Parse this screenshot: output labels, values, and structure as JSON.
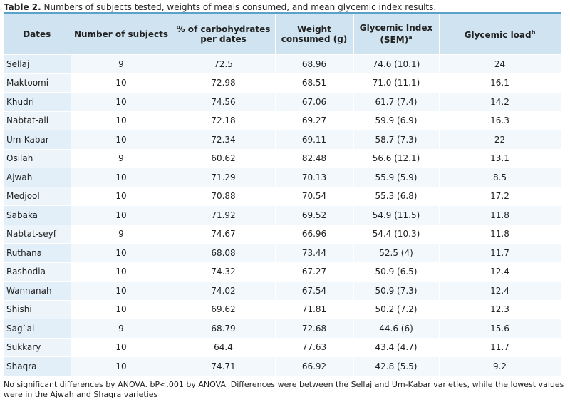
{
  "caption": {
    "label": "Table 2.",
    "text": "Numbers of subjects tested, weights of meals consumed, and mean glycemic index results."
  },
  "table": {
    "headers": [
      {
        "text": "Dates"
      },
      {
        "text": "Number of subjects"
      },
      {
        "text": "% of carbohydrates per dates"
      },
      {
        "text": "Weight consumed (g)"
      },
      {
        "text": "Glycemic Index (SEM)",
        "sup": "a"
      },
      {
        "text": "Glycemic load",
        "sup": "b"
      }
    ],
    "rows": [
      [
        "Sellaj",
        "9",
        "72.5",
        "68.96",
        "74.6 (10.1)",
        "24"
      ],
      [
        "Maktoomi",
        "10",
        "72.98",
        "68.51",
        "71.0 (11.1)",
        "16.1"
      ],
      [
        "Khudri",
        "10",
        "74.56",
        "67.06",
        "61.7 (7.4)",
        "14.2"
      ],
      [
        "Nabtat-ali",
        "10",
        "72.18",
        "69.27",
        "59.9 (6.9)",
        "16.3"
      ],
      [
        "Um-Kabar",
        "10",
        "72.34",
        "69.11",
        "58.7 (7.3)",
        "22"
      ],
      [
        "Osilah",
        "9",
        "60.62",
        "82.48",
        "56.6 (12.1)",
        "13.1"
      ],
      [
        "Ajwah",
        "10",
        "71.29",
        "70.13",
        "55.9 (5.9)",
        "8.5"
      ],
      [
        "Medjool",
        "10",
        "70.88",
        "70.54",
        "55.3 (6.8)",
        "17.2"
      ],
      [
        "Sabaka",
        "10",
        "71.92",
        "69.52",
        "54.9 (11.5)",
        "11.8"
      ],
      [
        "Nabtat-seyf",
        "9",
        "74.67",
        "66.96",
        "54.4 (10.3)",
        "11.8"
      ],
      [
        "Ruthana",
        "10",
        "68.08",
        "73.44",
        "52.5 (4)",
        "11.7"
      ],
      [
        "Rashodia",
        "10",
        "74.32",
        "67.27",
        "50.9 (6.5)",
        "12.4"
      ],
      [
        "Wannanah",
        "10",
        "74.02",
        "67.54",
        "50.9 (7.3)",
        "12.4"
      ],
      [
        "Shishi",
        "10",
        "69.62",
        "71.81",
        "50.2 (7.2)",
        "12.3"
      ],
      [
        "Sag`ai",
        "9",
        "68.79",
        "72.68",
        "44.6 (6)",
        "15.6"
      ],
      [
        "Sukkary",
        "10",
        "64.4",
        "77.63",
        "43.4 (4.7)",
        "11.7"
      ],
      [
        "Shaqra",
        "10",
        "74.71",
        "66.92",
        "42.8 (5.5)",
        "9.2"
      ]
    ]
  },
  "footnote": "No significant differences by ANOVA. bP<.001 by ANOVA. Differences were between the Sellaj and Um-Kabar varieties, while the lowest values were in the Ajwah and Shaqra varieties",
  "colors": {
    "rule": "#5aa2cc",
    "header_bg": "#cfe3f1",
    "row_alt_bg": "#f3f8fc",
    "first_col_bg": "#eef5fa"
  }
}
